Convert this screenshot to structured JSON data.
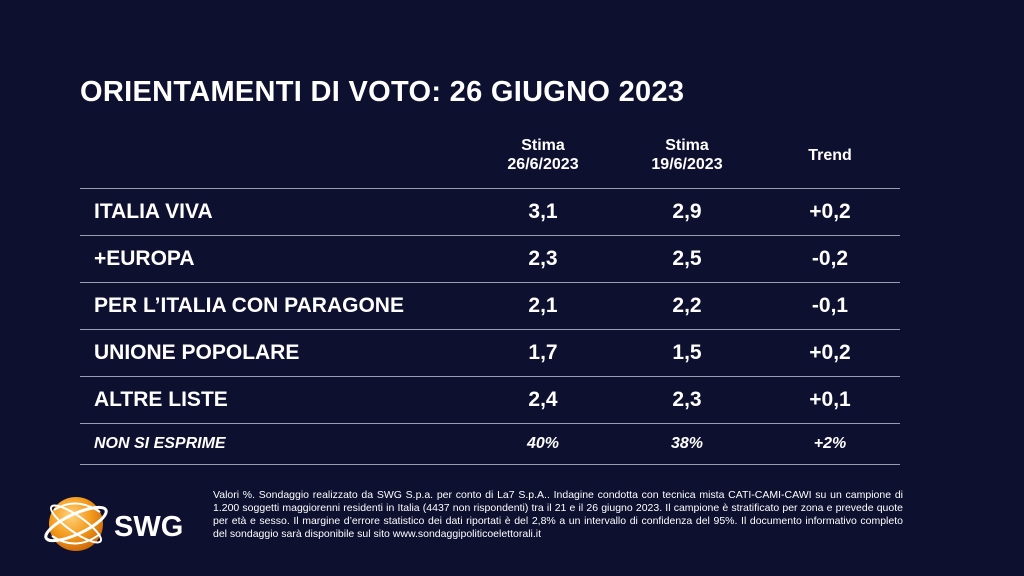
{
  "title": "ORIENTAMENTI DI VOTO: 26 GIUGNO 2023",
  "columns": {
    "c1_line1": "Stima",
    "c1_line2": "26/6/2023",
    "c2_line1": "Stima",
    "c2_line2": "19/6/2023",
    "c3": "Trend"
  },
  "rows": [
    {
      "label": "ITALIA VIVA",
      "v1": "3,1",
      "v2": "2,9",
      "trend": "+0,2"
    },
    {
      "label": "+EUROPA",
      "v1": "2,3",
      "v2": "2,5",
      "trend": "-0,2"
    },
    {
      "label": "PER L’ITALIA CON PARAGONE",
      "v1": "2,1",
      "v2": "2,2",
      "trend": "-0,1"
    },
    {
      "label": "UNIONE POPOLARE",
      "v1": "1,7",
      "v2": "1,5",
      "trend": "+0,2"
    },
    {
      "label": "ALTRE LISTE",
      "v1": "2,4",
      "v2": "2,3",
      "trend": "+0,1"
    },
    {
      "label": "NON SI ESPRIME",
      "v1": "40%",
      "v2": "38%",
      "trend": "+2%"
    }
  ],
  "logo": {
    "text": "SWG",
    "colors": {
      "orange": "#f39a1c",
      "white": "#ffffff"
    }
  },
  "footnote": "Valori %. Sondaggio realizzato da SWG S.p.a. per conto di La7 S.p.A.. Indagine condotta con tecnica mista CATI-CAMI-CAWI su un campione di 1.200 soggetti maggiorenni residenti in Italia (4437 non rispondenti) tra il 21 e il 26 giugno 2023. Il campione è stratificato per zona e prevede quote per età e sesso. Il margine d’errore statistico dei dati riportati è del 2,8% a un intervallo di confidenza del 95%. Il documento informativo completo del sondaggio sarà disponibile sul sito www.sondaggipoliticoelettorali.it",
  "colors": {
    "background": "#0e1030",
    "divider": "#9a9cb0",
    "text": "#ffffff"
  }
}
